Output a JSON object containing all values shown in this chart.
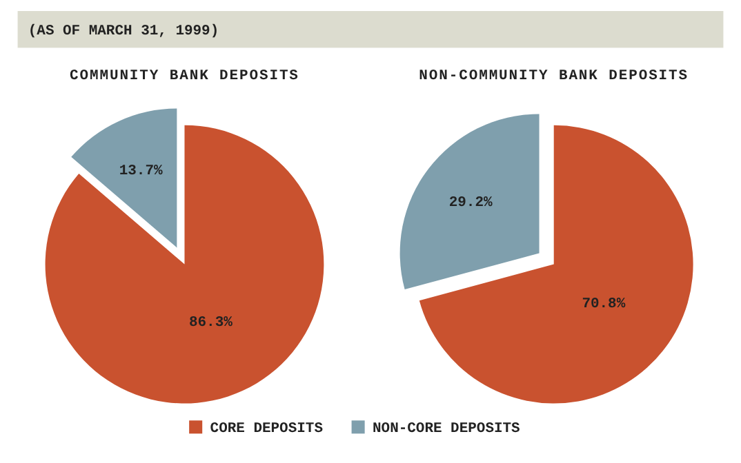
{
  "chart_data": [
    {
      "type": "pie",
      "title": "COMMUNITY BANK DEPOSITS",
      "annotations": [
        "(AS OF MARCH 31, 1999)"
      ],
      "categories": [
        "CORE DEPOSITS",
        "NON-CORE DEPOSITS"
      ],
      "values": [
        86.3,
        13.7
      ],
      "value_labels": [
        "86.3%",
        "13.7%"
      ],
      "colors": [
        "#c9522f",
        "#7f9fad"
      ],
      "legend": "bottom"
    },
    {
      "type": "pie",
      "title": "NON-COMMUNITY BANK DEPOSITS",
      "categories": [
        null,
        null
      ],
      "values": [
        70.8,
        29.2
      ],
      "value_labels": [
        "70.8%",
        "29.2%"
      ],
      "colors": [
        "#c9522f",
        "#7f9fad"
      ]
    }
  ]
}
